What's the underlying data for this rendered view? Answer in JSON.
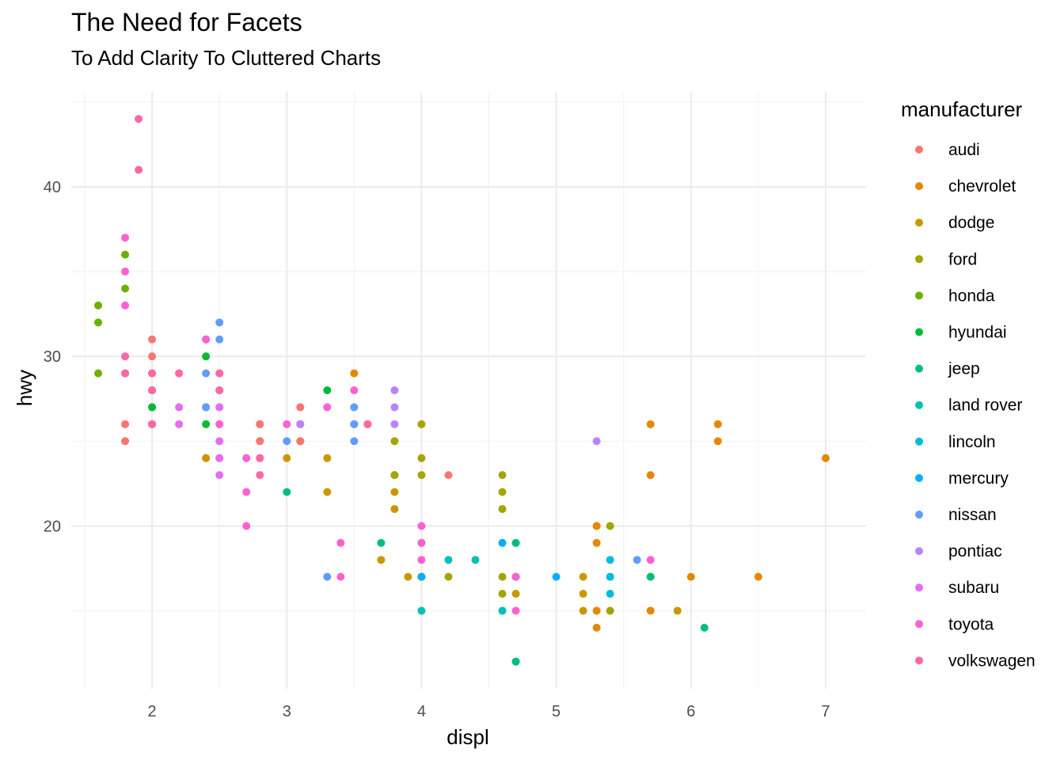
{
  "chart_data": {
    "type": "scatter",
    "title": "The Need for Facets",
    "subtitle": "To Add Clarity To Cluttered Charts",
    "xlabel": "displ",
    "ylabel": "hwy",
    "xlim": [
      1.4,
      7.3
    ],
    "ylim": [
      10.4,
      45.6
    ],
    "x_ticks": [
      2,
      3,
      4,
      5,
      6,
      7
    ],
    "y_ticks": [
      20,
      30,
      40
    ],
    "grid": true,
    "legend": {
      "title": "manufacturer",
      "placement": "right"
    },
    "series": [
      {
        "name": "audi",
        "color": "#F8766D",
        "points": [
          [
            1.8,
            29
          ],
          [
            1.8,
            29
          ],
          [
            2,
            31
          ],
          [
            2,
            30
          ],
          [
            2.8,
            26
          ],
          [
            2.8,
            26
          ],
          [
            3.1,
            27
          ],
          [
            1.8,
            26
          ],
          [
            1.8,
            25
          ],
          [
            2,
            28
          ],
          [
            2,
            27
          ],
          [
            2.8,
            25
          ],
          [
            2.8,
            25
          ],
          [
            3.1,
            25
          ],
          [
            3.1,
            25
          ],
          [
            2.8,
            24
          ],
          [
            3.1,
            25
          ],
          [
            4.2,
            23
          ]
        ]
      },
      {
        "name": "chevrolet",
        "color": "#E58700",
        "points": [
          [
            5.3,
            20
          ],
          [
            5.3,
            15
          ],
          [
            5.3,
            20
          ],
          [
            5.7,
            17
          ],
          [
            6,
            17
          ],
          [
            5.7,
            26
          ],
          [
            5.7,
            23
          ],
          [
            6.2,
            26
          ],
          [
            6.2,
            25
          ],
          [
            7,
            24
          ],
          [
            5.3,
            19
          ],
          [
            5.3,
            14
          ],
          [
            5.7,
            15
          ],
          [
            6.5,
            17
          ],
          [
            2.4,
            24
          ],
          [
            3.5,
            29
          ],
          [
            3.1,
            26
          ],
          [
            3.6,
            26
          ],
          [
            2.4,
            27
          ]
        ]
      },
      {
        "name": "dodge",
        "color": "#C99800",
        "points": [
          [
            2.4,
            24
          ],
          [
            3,
            24
          ],
          [
            3.3,
            22
          ],
          [
            3.3,
            24
          ],
          [
            3.8,
            22
          ],
          [
            3.8,
            21
          ],
          [
            3.9,
            17
          ],
          [
            4.7,
            17
          ],
          [
            4.7,
            16
          ],
          [
            5.2,
            17
          ],
          [
            5.2,
            15
          ],
          [
            5.7,
            17
          ],
          [
            5.9,
            15
          ],
          [
            4.7,
            12
          ],
          [
            5.2,
            16
          ],
          [
            3.7,
            18
          ],
          [
            4.7,
            19
          ],
          [
            4.7,
            17
          ]
        ]
      },
      {
        "name": "ford",
        "color": "#A3A500",
        "points": [
          [
            4,
            17
          ],
          [
            4.2,
            17
          ],
          [
            4.6,
            16
          ],
          [
            4.6,
            17
          ],
          [
            5.4,
            15
          ],
          [
            5.4,
            20
          ],
          [
            3.8,
            25
          ],
          [
            3.8,
            23
          ],
          [
            4,
            26
          ],
          [
            4,
            24
          ],
          [
            4.6,
            23
          ],
          [
            4.6,
            22
          ],
          [
            4.6,
            21
          ],
          [
            5.4,
            17
          ],
          [
            4,
            23
          ],
          [
            3.8,
            23
          ],
          [
            4,
            17
          ]
        ]
      },
      {
        "name": "honda",
        "color": "#6BB100",
        "points": [
          [
            1.8,
            36
          ],
          [
            1.6,
            33
          ],
          [
            1.6,
            32
          ],
          [
            1.6,
            29
          ],
          [
            1.8,
            34
          ],
          [
            2,
            28
          ]
        ]
      },
      {
        "name": "hyundai",
        "color": "#00BA38",
        "points": [
          [
            2,
            26
          ],
          [
            2,
            27
          ],
          [
            2.4,
            30
          ],
          [
            2.4,
            26
          ],
          [
            2.7,
            24
          ],
          [
            3.3,
            28
          ],
          [
            2.5,
            28
          ]
        ]
      },
      {
        "name": "jeep",
        "color": "#00BF7D",
        "points": [
          [
            3,
            22
          ],
          [
            3.7,
            19
          ],
          [
            4.7,
            19
          ],
          [
            4.7,
            17
          ],
          [
            5.7,
            17
          ],
          [
            6.1,
            14
          ],
          [
            4.7,
            12
          ]
        ]
      },
      {
        "name": "land rover",
        "color": "#00C0B8",
        "points": [
          [
            4,
            15
          ],
          [
            4.2,
            18
          ],
          [
            4.4,
            18
          ],
          [
            4.6,
            15
          ]
        ]
      },
      {
        "name": "lincoln",
        "color": "#00BCD8",
        "points": [
          [
            5.4,
            17
          ],
          [
            5.4,
            16
          ],
          [
            5.4,
            18
          ]
        ]
      },
      {
        "name": "mercury",
        "color": "#00B0F6",
        "points": [
          [
            4,
            19
          ],
          [
            4,
            17
          ],
          [
            4.6,
            19
          ],
          [
            5,
            17
          ]
        ]
      },
      {
        "name": "nissan",
        "color": "#619CFF",
        "points": [
          [
            2.4,
            29
          ],
          [
            2.4,
            27
          ],
          [
            2.5,
            31
          ],
          [
            2.5,
            32
          ],
          [
            3.5,
            27
          ],
          [
            3.5,
            26
          ],
          [
            3.5,
            25
          ],
          [
            3.3,
            17
          ],
          [
            3.5,
            26
          ],
          [
            5.6,
            18
          ],
          [
            3,
            25
          ]
        ]
      },
      {
        "name": "pontiac",
        "color": "#B983FF",
        "points": [
          [
            3.1,
            26
          ],
          [
            3.8,
            27
          ],
          [
            3.8,
            26
          ],
          [
            3.8,
            28
          ],
          [
            5.3,
            25
          ]
        ]
      },
      {
        "name": "subaru",
        "color": "#E76BF3",
        "points": [
          [
            2.5,
            27
          ],
          [
            2.5,
            26
          ],
          [
            2.5,
            25
          ],
          [
            2.5,
            23
          ],
          [
            2.5,
            24
          ],
          [
            2.2,
            26
          ],
          [
            2.2,
            27
          ],
          [
            2.5,
            24
          ]
        ]
      },
      {
        "name": "toyota",
        "color": "#FD61D1",
        "points": [
          [
            2.7,
            20
          ],
          [
            2.7,
            22
          ],
          [
            3.4,
            19
          ],
          [
            3.4,
            17
          ],
          [
            4,
            20
          ],
          [
            4,
            18
          ],
          [
            4.7,
            17
          ],
          [
            4.7,
            15
          ],
          [
            5.7,
            18
          ],
          [
            1.8,
            35
          ],
          [
            1.8,
            37
          ],
          [
            1.8,
            33
          ],
          [
            2.4,
            31
          ],
          [
            2.4,
            31
          ],
          [
            3,
            26
          ],
          [
            3.3,
            27
          ],
          [
            3.5,
            28
          ],
          [
            2.5,
            26
          ],
          [
            4,
            19
          ],
          [
            2.2,
            29
          ],
          [
            2.4,
            31
          ],
          [
            2.7,
            24
          ]
        ]
      },
      {
        "name": "volkswagen",
        "color": "#FF67A4",
        "points": [
          [
            1.9,
            44
          ],
          [
            1.9,
            41
          ],
          [
            2,
            29
          ],
          [
            2,
            26
          ],
          [
            2.8,
            23
          ],
          [
            1.8,
            29
          ],
          [
            1.8,
            30
          ],
          [
            2,
            28
          ],
          [
            2.5,
            29
          ],
          [
            2.5,
            29
          ],
          [
            2.8,
            24
          ],
          [
            3.6,
            26
          ],
          [
            2,
            29
          ],
          [
            2.2,
            29
          ],
          [
            2.5,
            28
          ],
          [
            2,
            26
          ]
        ]
      }
    ]
  }
}
